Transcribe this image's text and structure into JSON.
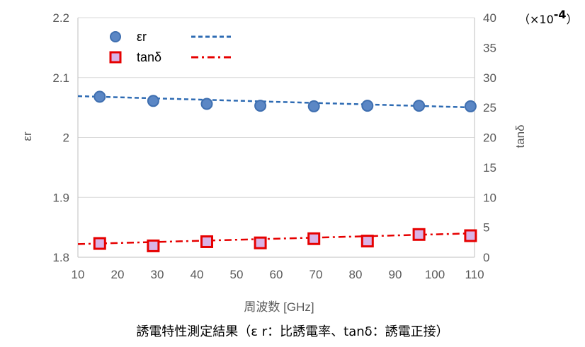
{
  "caption": "誘電特性測定結果（ε r：比誘電率、tanδ：誘電正接）",
  "chart_data": {
    "type": "scatter",
    "xlabel": "周波数 [GHz]",
    "ylabel_left": "εr",
    "ylabel_right": "tanδ",
    "right_axis_multiplier": "（×10",
    "right_axis_multiplier_exp": "-4",
    "right_axis_multiplier_close": "）",
    "xlim": [
      10,
      110
    ],
    "x_ticks": [
      "10",
      "20",
      "30",
      "40",
      "50",
      "60",
      "70",
      "80",
      "90",
      "100",
      "110"
    ],
    "ylim_left": [
      1.8,
      2.2
    ],
    "y_ticks_left": [
      "1.8",
      "1.9",
      "2",
      "2.1",
      "2.2"
    ],
    "ylim_right": [
      0,
      40
    ],
    "y_ticks_right": [
      "0",
      "5",
      "10",
      "15",
      "20",
      "25",
      "30",
      "35",
      "40"
    ],
    "grid": "horizontal",
    "legend_position": "top-left",
    "series": [
      {
        "name": "εr",
        "axis": "left",
        "marker": "circle",
        "color": "#5b87c5",
        "x": [
          15.5,
          29,
          42.5,
          56,
          69.5,
          83,
          96,
          109
        ],
        "y": [
          2.068,
          2.061,
          2.056,
          2.053,
          2.052,
          2.053,
          2.053,
          2.052
        ],
        "trendline": {
          "color": "#2e6bb3",
          "style": "dashed",
          "y_start": 2.069,
          "y_end": 2.05
        }
      },
      {
        "name": "tanδ",
        "axis": "right",
        "marker": "square",
        "color": "#e60000",
        "x": [
          15.5,
          29,
          42.5,
          56,
          69.5,
          83,
          96,
          109
        ],
        "y": [
          2.3,
          1.9,
          2.6,
          2.4,
          3.1,
          2.7,
          3.8,
          3.6
        ],
        "trendline": {
          "color": "#e60000",
          "style": "dash-dot",
          "y_start": 2.2,
          "y_end": 4.0
        }
      }
    ]
  }
}
